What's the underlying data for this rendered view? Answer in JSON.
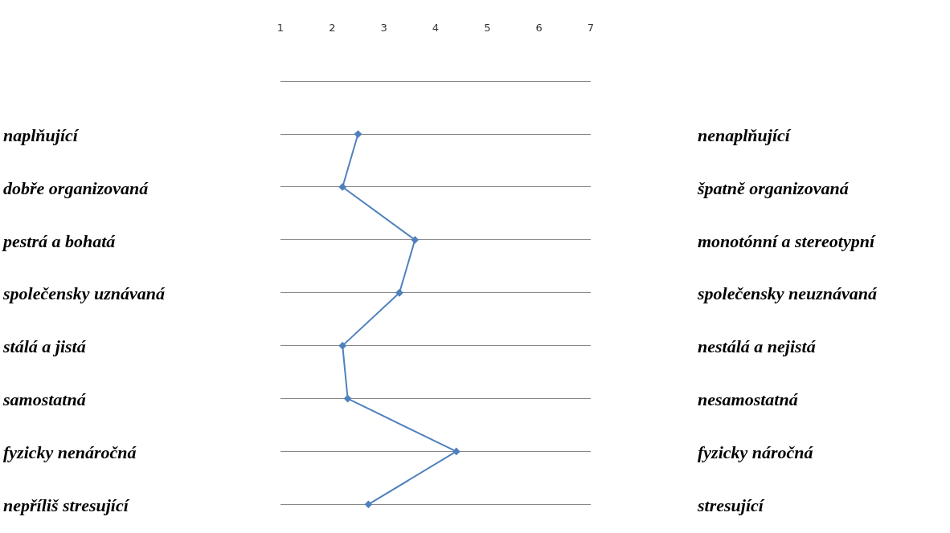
{
  "chart_data": {
    "type": "line",
    "orientation": "horizontal",
    "categories": [
      "naplňující",
      "dobře organizovaná",
      "pestrá a bohatá",
      "společensky uznávaná",
      "stálá a jistá",
      "samostatná",
      "fyzicky nenáročná",
      "nepříliš stresující"
    ],
    "y2_categories": [
      "nenaplňující",
      "špatně organizovaná",
      "monotónní a stereotypní",
      "společensky neuznávaná",
      "nestálá a nejistá",
      "nesamostatná",
      "fyzicky náročná",
      "stresující"
    ],
    "series": [
      {
        "color": "#4f81bd",
        "values": [
          2.5,
          2.2,
          3.6,
          3.3,
          2.2,
          2.3,
          4.4,
          2.7
        ]
      }
    ],
    "xlim": [
      1,
      7
    ],
    "xticks": [
      1,
      2,
      3,
      4,
      5,
      6,
      7
    ],
    "grid": "y",
    "marker": "diamond",
    "line_style": "solid",
    "legend": false
  }
}
